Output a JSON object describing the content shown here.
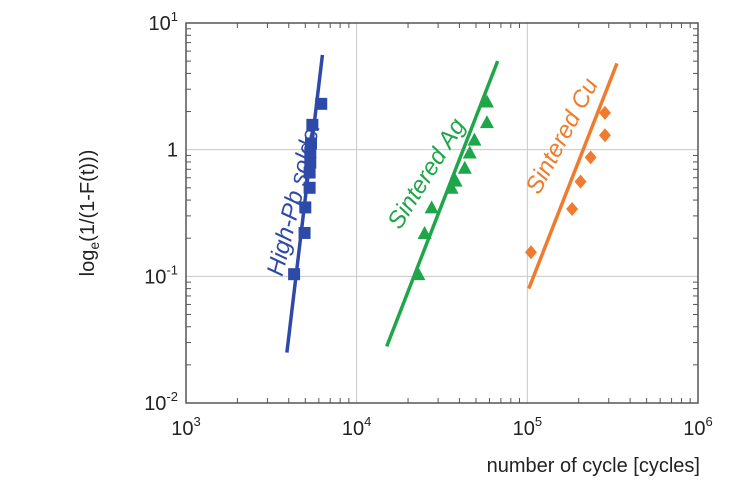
{
  "chart_data": {
    "type": "scatter",
    "title": "",
    "xlabel": "number of cycle [cycles]",
    "ylabel_main": "log",
    "ylabel_sub": "e",
    "ylabel_rest": "(1/(1-F(t)))",
    "x_scale": "log",
    "y_scale": "log",
    "xlim": [
      1000,
      1000000
    ],
    "ylim": [
      0.01,
      10
    ],
    "grid": true,
    "x_ticks": [
      {
        "value": 1000,
        "base": "10",
        "exp": "3"
      },
      {
        "value": 10000,
        "base": "10",
        "exp": "4"
      },
      {
        "value": 100000,
        "base": "10",
        "exp": "5"
      },
      {
        "value": 1000000,
        "base": "10",
        "exp": "6"
      }
    ],
    "y_ticks": [
      {
        "value": 0.01,
        "base": "10",
        "exp": "-2"
      },
      {
        "value": 0.1,
        "base": "10",
        "exp": "-1"
      },
      {
        "value": 1,
        "base": "1",
        "exp": ""
      },
      {
        "value": 10,
        "base": "10",
        "exp": "1"
      }
    ],
    "series": [
      {
        "name": "High-Pb solder",
        "color": "#2e4aa8",
        "marker": "square",
        "points": [
          [
            4300,
            0.104
          ],
          [
            4950,
            0.22
          ],
          [
            5000,
            0.35
          ],
          [
            5300,
            0.5
          ],
          [
            5300,
            0.66
          ],
          [
            5350,
            0.79
          ],
          [
            5350,
            0.95
          ],
          [
            5400,
            1.12
          ],
          [
            5500,
            1.57
          ],
          [
            6200,
            2.3
          ]
        ],
        "fit_line": [
          [
            3900,
            0.025
          ],
          [
            6300,
            5.6
          ]
        ],
        "label_anchor": {
          "x": 4750,
          "y": 0.4
        },
        "label_angle": -76
      },
      {
        "name": "Sintered Ag",
        "color": "#1fa64a",
        "marker": "triangle",
        "points": [
          [
            23000,
            0.104
          ],
          [
            25000,
            0.22
          ],
          [
            27500,
            0.35
          ],
          [
            36000,
            0.5
          ],
          [
            38000,
            0.57
          ],
          [
            43000,
            0.72
          ],
          [
            46000,
            0.95
          ],
          [
            49000,
            1.2
          ],
          [
            58000,
            1.65
          ],
          [
            58000,
            2.4
          ]
        ],
        "fit_line": [
          [
            15000,
            0.028
          ],
          [
            67000,
            5.0
          ]
        ],
        "label_anchor": {
          "x": 28000,
          "y": 0.6
        },
        "label_angle": -58
      },
      {
        "name": "Sintered Cu",
        "color": "#f07b2c",
        "marker": "diamond",
        "points": [
          [
            105000,
            0.155
          ],
          [
            183000,
            0.34
          ],
          [
            205000,
            0.56
          ],
          [
            235000,
            0.87
          ],
          [
            285000,
            1.3
          ],
          [
            285000,
            1.95
          ]
        ],
        "fit_line": [
          [
            102000,
            0.08
          ],
          [
            335000,
            4.8
          ]
        ],
        "label_anchor": {
          "x": 175000,
          "y": 1.2
        },
        "label_angle": -62
      }
    ]
  }
}
